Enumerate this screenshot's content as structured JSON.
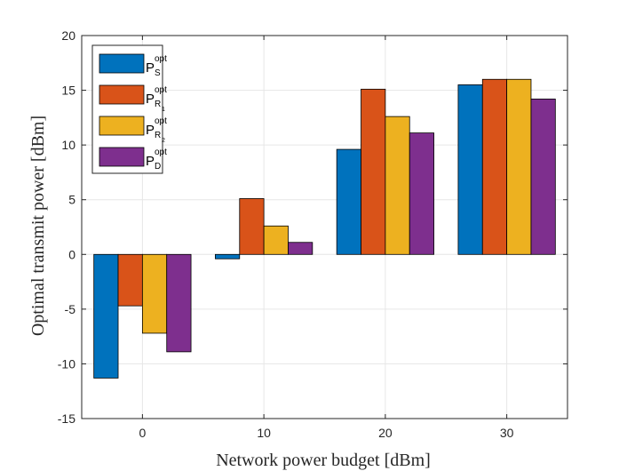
{
  "chart_data": {
    "type": "bar",
    "title": "",
    "xlabel": "Network power budget [dBm]",
    "ylabel": "Optimal transmit power [dBm]",
    "categories": [
      "0",
      "10",
      "20",
      "30"
    ],
    "ylim": [
      -15,
      20
    ],
    "yticks": [
      -15,
      -10,
      -5,
      0,
      5,
      10,
      15,
      20
    ],
    "ytick_labels": [
      "-15",
      "-10",
      "-5",
      "0",
      "5",
      "10",
      "15",
      "20"
    ],
    "grid": true,
    "legend_position": "top-left",
    "series": [
      {
        "name": "P_S^opt",
        "base": "P",
        "sup": "opt",
        "sub": "S",
        "subsub": "",
        "color": "#0072BD",
        "values": [
          -11.3,
          -0.4,
          9.6,
          15.5
        ]
      },
      {
        "name": "P_R1^opt",
        "base": "P",
        "sup": "opt",
        "sub": "R",
        "subsub": "1",
        "color": "#D95319",
        "values": [
          -4.7,
          5.1,
          15.1,
          16.0
        ]
      },
      {
        "name": "P_R2^opt",
        "base": "P",
        "sup": "opt",
        "sub": "R",
        "subsub": "2",
        "color": "#EDB120",
        "values": [
          -7.2,
          2.6,
          12.6,
          16.0
        ]
      },
      {
        "name": "P_D^opt",
        "base": "P",
        "sup": "opt",
        "sub": "D",
        "subsub": "",
        "color": "#7E2F8E",
        "values": [
          -8.9,
          1.1,
          11.1,
          14.2
        ]
      }
    ]
  }
}
